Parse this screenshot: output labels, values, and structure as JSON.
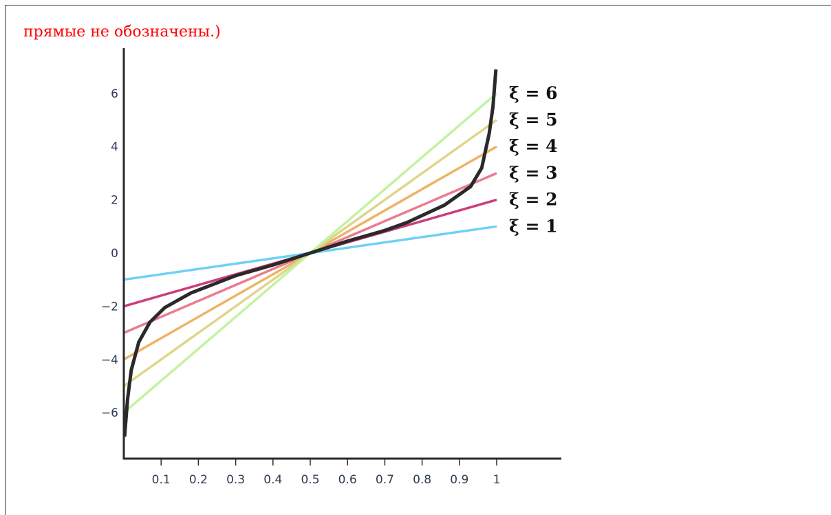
{
  "caption": "прямые не обозначены.)",
  "chart_data": {
    "type": "line",
    "title": "",
    "xlabel": "",
    "ylabel": "",
    "xlim": [
      0,
      1.17
    ],
    "ylim": [
      -7.5,
      7.5
    ],
    "x_ticks": [
      0.1,
      0.2,
      0.3,
      0.4,
      0.5,
      0.6,
      0.7,
      0.8,
      0.9,
      1
    ],
    "x_tick_labels": [
      "0.1",
      "0.2",
      "0.3",
      "0.4",
      "0.5",
      "0.6",
      "0.7",
      "0.8",
      "0.9",
      "1"
    ],
    "y_ticks": [
      -6,
      -4,
      -2,
      0,
      2,
      4,
      6
    ],
    "y_tick_labels": [
      "−6",
      "−4",
      "−2",
      "0",
      "2",
      "4",
      "6"
    ],
    "grid": false,
    "lines": [
      {
        "label": "ξ = 1",
        "slope": 1,
        "color": "#6fd0f5",
        "x": [
          0,
          1
        ],
        "y": [
          -1,
          1
        ]
      },
      {
        "label": "ξ = 2",
        "slope": 2,
        "color": "#cc3d7a",
        "x": [
          0,
          1
        ],
        "y": [
          -2,
          2
        ]
      },
      {
        "label": "ξ = 3",
        "slope": 3,
        "color": "#ec7b8e",
        "x": [
          0,
          1
        ],
        "y": [
          -3,
          3
        ]
      },
      {
        "label": "ξ = 4",
        "slope": 4,
        "color": "#edb467",
        "x": [
          0,
          1
        ],
        "y": [
          -4,
          4
        ]
      },
      {
        "label": "ξ = 5",
        "slope": 5,
        "color": "#dfd58b",
        "x": [
          0,
          1
        ],
        "y": [
          -5,
          5
        ]
      },
      {
        "label": "ξ = 6",
        "slope": 6,
        "color": "#c3f2a1",
        "x": [
          0,
          1
        ],
        "y": [
          -6,
          6
        ]
      }
    ],
    "curve": {
      "color": "#2a2a2a",
      "x": [
        0.002,
        0.01,
        0.02,
        0.04,
        0.07,
        0.11,
        0.18,
        0.3,
        0.4,
        0.5,
        0.6,
        0.7,
        0.76,
        0.86,
        0.93,
        0.96,
        0.98,
        0.99,
        0.998
      ],
      "y": [
        -6.9,
        -5.5,
        -4.4,
        -3.35,
        -2.6,
        -2.05,
        -1.5,
        -0.85,
        -0.45,
        0,
        0.45,
        0.85,
        1.15,
        1.8,
        2.5,
        3.2,
        4.5,
        5.5,
        6.9
      ]
    }
  }
}
